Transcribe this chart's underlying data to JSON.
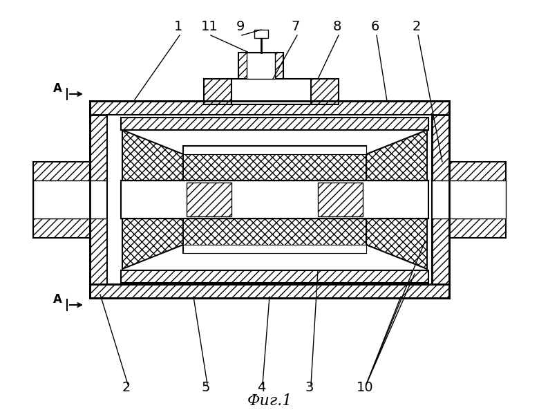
{
  "title": "Фиг.1",
  "background": "#ffffff",
  "figsize": [
    7.8,
    6.06
  ],
  "dpi": 100
}
